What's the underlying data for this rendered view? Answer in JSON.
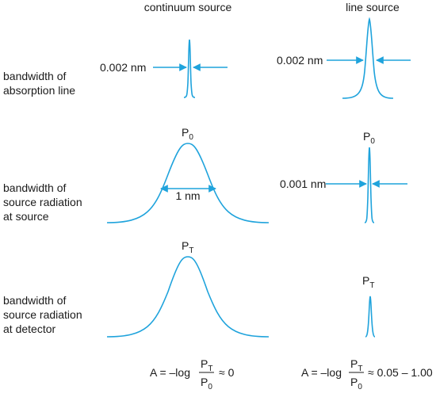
{
  "columns": {
    "continuum": "continuum source",
    "line": "line source"
  },
  "rows": {
    "absorption": [
      "bandwidth of",
      "absorption line"
    ],
    "source": [
      "bandwidth of",
      "source radiation",
      "at source"
    ],
    "detector": [
      "bandwidth of",
      "source radiation",
      "at detector"
    ]
  },
  "labels": {
    "width_abs_continuum": "0.002 nm",
    "width_abs_line": "0.002 nm",
    "width_source_continuum": "1 nm",
    "width_source_line": "0.001 nm",
    "p0": "P",
    "p0_sub": "0",
    "pt": "P",
    "pt_sub": "T"
  },
  "equations": {
    "continuum": {
      "lhs": "A = –log",
      "num": "P",
      "num_sub": "T",
      "den": "P",
      "den_sub": "0",
      "rhs": "≈ 0"
    },
    "line": {
      "lhs": "A = –log",
      "num": "P",
      "num_sub": "T",
      "den": "P",
      "den_sub": "0",
      "rhs": "≈ 0.05 – 1.00"
    }
  },
  "colors": {
    "curve": "#1fa3dc",
    "text": "#1a1a1a"
  }
}
